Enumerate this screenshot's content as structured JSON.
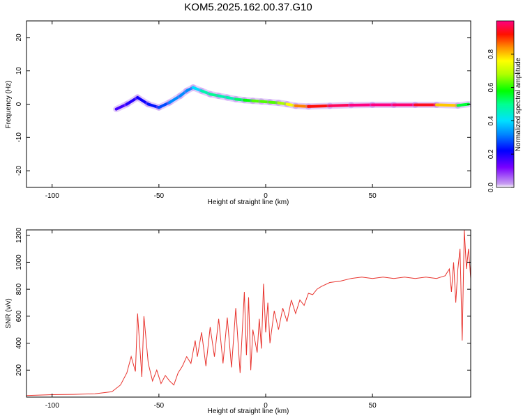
{
  "title": "KOM5.2025.162.00.37.G10",
  "chart_data": [
    {
      "type": "heatmap",
      "xlabel": "Height of straight line (km)",
      "ylabel": "Frequency (Hz)",
      "xlim": [
        -112,
        96
      ],
      "ylim": [
        -25,
        25
      ],
      "xticks": [
        -100,
        -50,
        0,
        50
      ],
      "yticks": [
        -20,
        -10,
        0,
        10,
        20
      ],
      "ridge": {
        "x": [
          -70,
          -65,
          -60,
          -55,
          -50,
          -45,
          -40,
          -37,
          -34,
          -30,
          -26,
          -22,
          -18,
          -14,
          -10,
          -6,
          -2,
          2,
          6,
          10,
          14,
          20,
          30,
          40,
          50,
          60,
          70,
          80,
          90,
          95
        ],
        "freq": [
          -1.5,
          0,
          2,
          0,
          -1,
          0.5,
          2.5,
          4,
          5,
          4,
          3,
          2.5,
          2,
          1.5,
          1.2,
          1,
          0.8,
          0.6,
          0.4,
          0,
          -0.5,
          -0.7,
          -0.5,
          -0.3,
          -0.2,
          -0.2,
          -0.2,
          -0.2,
          -0.4,
          0
        ],
        "amplitude": [
          0.15,
          0.18,
          0.2,
          0.22,
          0.25,
          0.3,
          0.35,
          0.3,
          0.35,
          0.45,
          0.5,
          0.5,
          0.45,
          0.5,
          0.55,
          0.6,
          0.65,
          0.6,
          0.65,
          0.7,
          0.8,
          0.9,
          0.95,
          1.0,
          1.0,
          1.0,
          0.98,
          0.9,
          0.7,
          0.4
        ]
      },
      "colorbar": {
        "label": "Normalized spectral amplitude",
        "ticks": [
          0.0,
          0.2,
          0.4,
          0.6,
          0.8
        ],
        "tick_labels": [
          "0.0",
          "0.2",
          "0.4",
          "0.6",
          "0.8"
        ],
        "range": [
          0,
          1
        ]
      }
    },
    {
      "type": "line",
      "xlabel": "Height of straight line (km)",
      "ylabel": "SNR (v/v)",
      "xlim": [
        -112,
        96
      ],
      "ylim": [
        0,
        1240
      ],
      "xticks": [
        -100,
        -50,
        0,
        50
      ],
      "yticks": [
        200,
        400,
        600,
        800,
        1000,
        1200
      ],
      "line_color": "#e8322c",
      "series": [
        {
          "x": [
            -112,
            -100,
            -90,
            -80,
            -72,
            -68,
            -65,
            -63,
            -61,
            -60,
            -58,
            -57,
            -55,
            -53,
            -51,
            -49,
            -47,
            -45,
            -43,
            -41,
            -39,
            -37,
            -35,
            -33,
            -32,
            -30,
            -28,
            -26,
            -24,
            -22,
            -20,
            -18,
            -16,
            -14,
            -12,
            -10,
            -9,
            -8,
            -7,
            -6,
            -4,
            -3,
            -2,
            -1,
            0,
            1,
            2,
            4,
            6,
            8,
            10,
            12,
            14,
            16,
            18,
            20,
            22,
            24,
            26,
            30,
            35,
            40,
            45,
            50,
            55,
            60,
            65,
            70,
            75,
            80,
            84,
            86,
            87,
            88,
            89,
            90,
            91,
            92,
            93,
            94,
            95,
            96
          ],
          "y": [
            12,
            18,
            20,
            25,
            40,
            90,
            180,
            300,
            190,
            620,
            150,
            600,
            250,
            120,
            200,
            100,
            160,
            120,
            90,
            180,
            230,
            300,
            250,
            420,
            300,
            480,
            230,
            520,
            300,
            580,
            250,
            590,
            220,
            660,
            180,
            780,
            310,
            740,
            200,
            500,
            330,
            580,
            360,
            840,
            480,
            700,
            400,
            640,
            500,
            660,
            560,
            720,
            620,
            720,
            680,
            770,
            760,
            800,
            820,
            850,
            860,
            880,
            890,
            880,
            890,
            880,
            890,
            880,
            890,
            880,
            900,
            950,
            780,
            1000,
            700,
            950,
            1100,
            420,
            1240,
            950,
            1100,
            880
          ]
        }
      ]
    }
  ]
}
